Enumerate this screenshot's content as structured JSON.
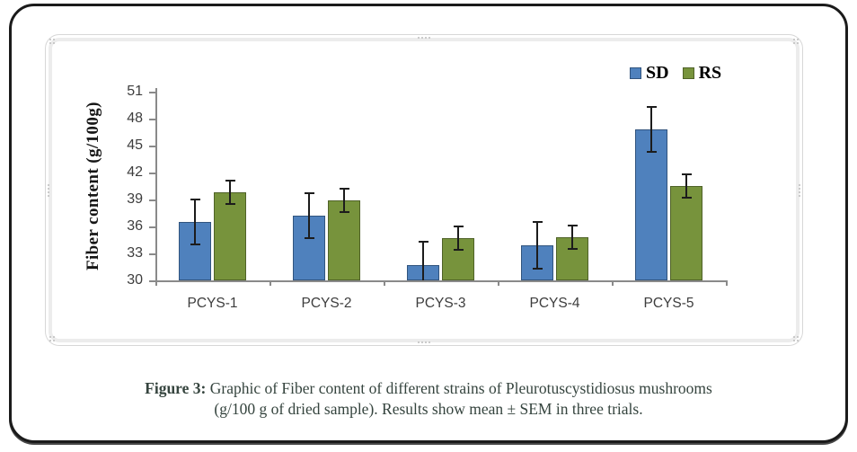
{
  "figure": {
    "caption": {
      "prefix": "Figure 3:",
      "line1": "Graphic of Fiber content of different strains of Pleurotuscystidiosus mushrooms",
      "line2": "(g/100 g of dried sample). Results show mean ± SEM in three trials."
    }
  },
  "chart_data": {
    "type": "bar",
    "title": "",
    "categories": [
      "PCYS-1",
      "PCYS-2",
      "PCYS-3",
      "PCYS-4",
      "PCYS-5"
    ],
    "series": [
      {
        "name": "SD",
        "color": "#4F81BD",
        "border": "#31547E",
        "values": [
          36.5,
          37.2,
          31.7,
          33.9,
          46.8
        ],
        "errors": [
          2.5,
          2.5,
          2.6,
          2.6,
          2.5
        ]
      },
      {
        "name": "RS",
        "color": "#77933C",
        "border": "#4F6228",
        "values": [
          39.8,
          38.9,
          34.7,
          34.8,
          40.5
        ],
        "errors": [
          1.3,
          1.3,
          1.3,
          1.3,
          1.3
        ]
      }
    ],
    "xlabel": "",
    "ylabel": "Fiber content (g/100g)",
    "ylim": [
      30,
      51
    ],
    "ytick_step": 3,
    "yticks": [
      30,
      33,
      36,
      39,
      42,
      45,
      48,
      51
    ],
    "grid": false,
    "legend_position": "top-right",
    "error_bar_color": "#1c1c1c",
    "axis_color": "#8a8a8a"
  }
}
